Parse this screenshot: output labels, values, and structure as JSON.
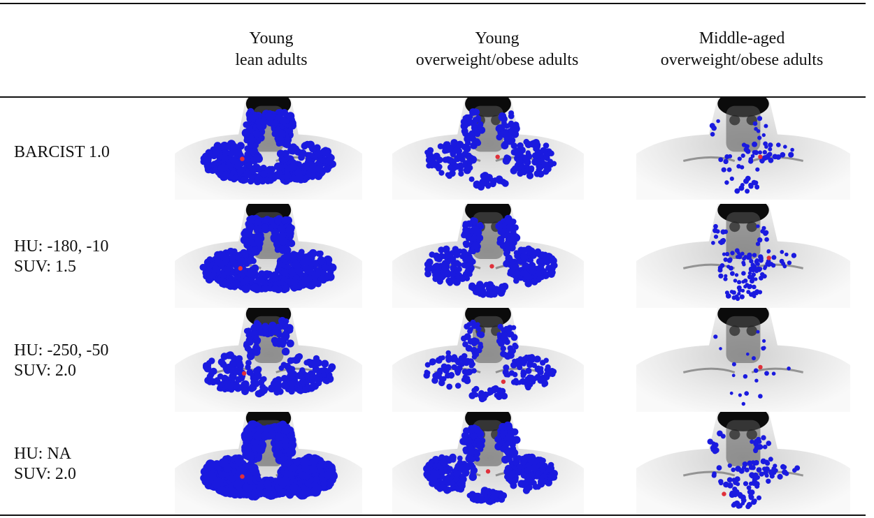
{
  "columns": [
    {
      "line1": "Young",
      "line2": "lean adults"
    },
    {
      "line1": "Young",
      "line2": "overweight/obese adults"
    },
    {
      "line1": "Middle-aged",
      "line2": "overweight/obese adults"
    }
  ],
  "rows": [
    {
      "line1": "BARCIST 1.0",
      "line2": ""
    },
    {
      "line1": "HU: -180, -10",
      "line2": "SUV: 1.5"
    },
    {
      "line1": "HU: -250, -50",
      "line2": "SUV: 2.0"
    },
    {
      "line1": "HU: NA",
      "line2": "SUV: 2.0"
    }
  ],
  "colors": {
    "segmentation": "#1a1adf",
    "marker": "#e0303a",
    "background": "#ffffff",
    "pet_dark": "#0b0b0b"
  }
}
